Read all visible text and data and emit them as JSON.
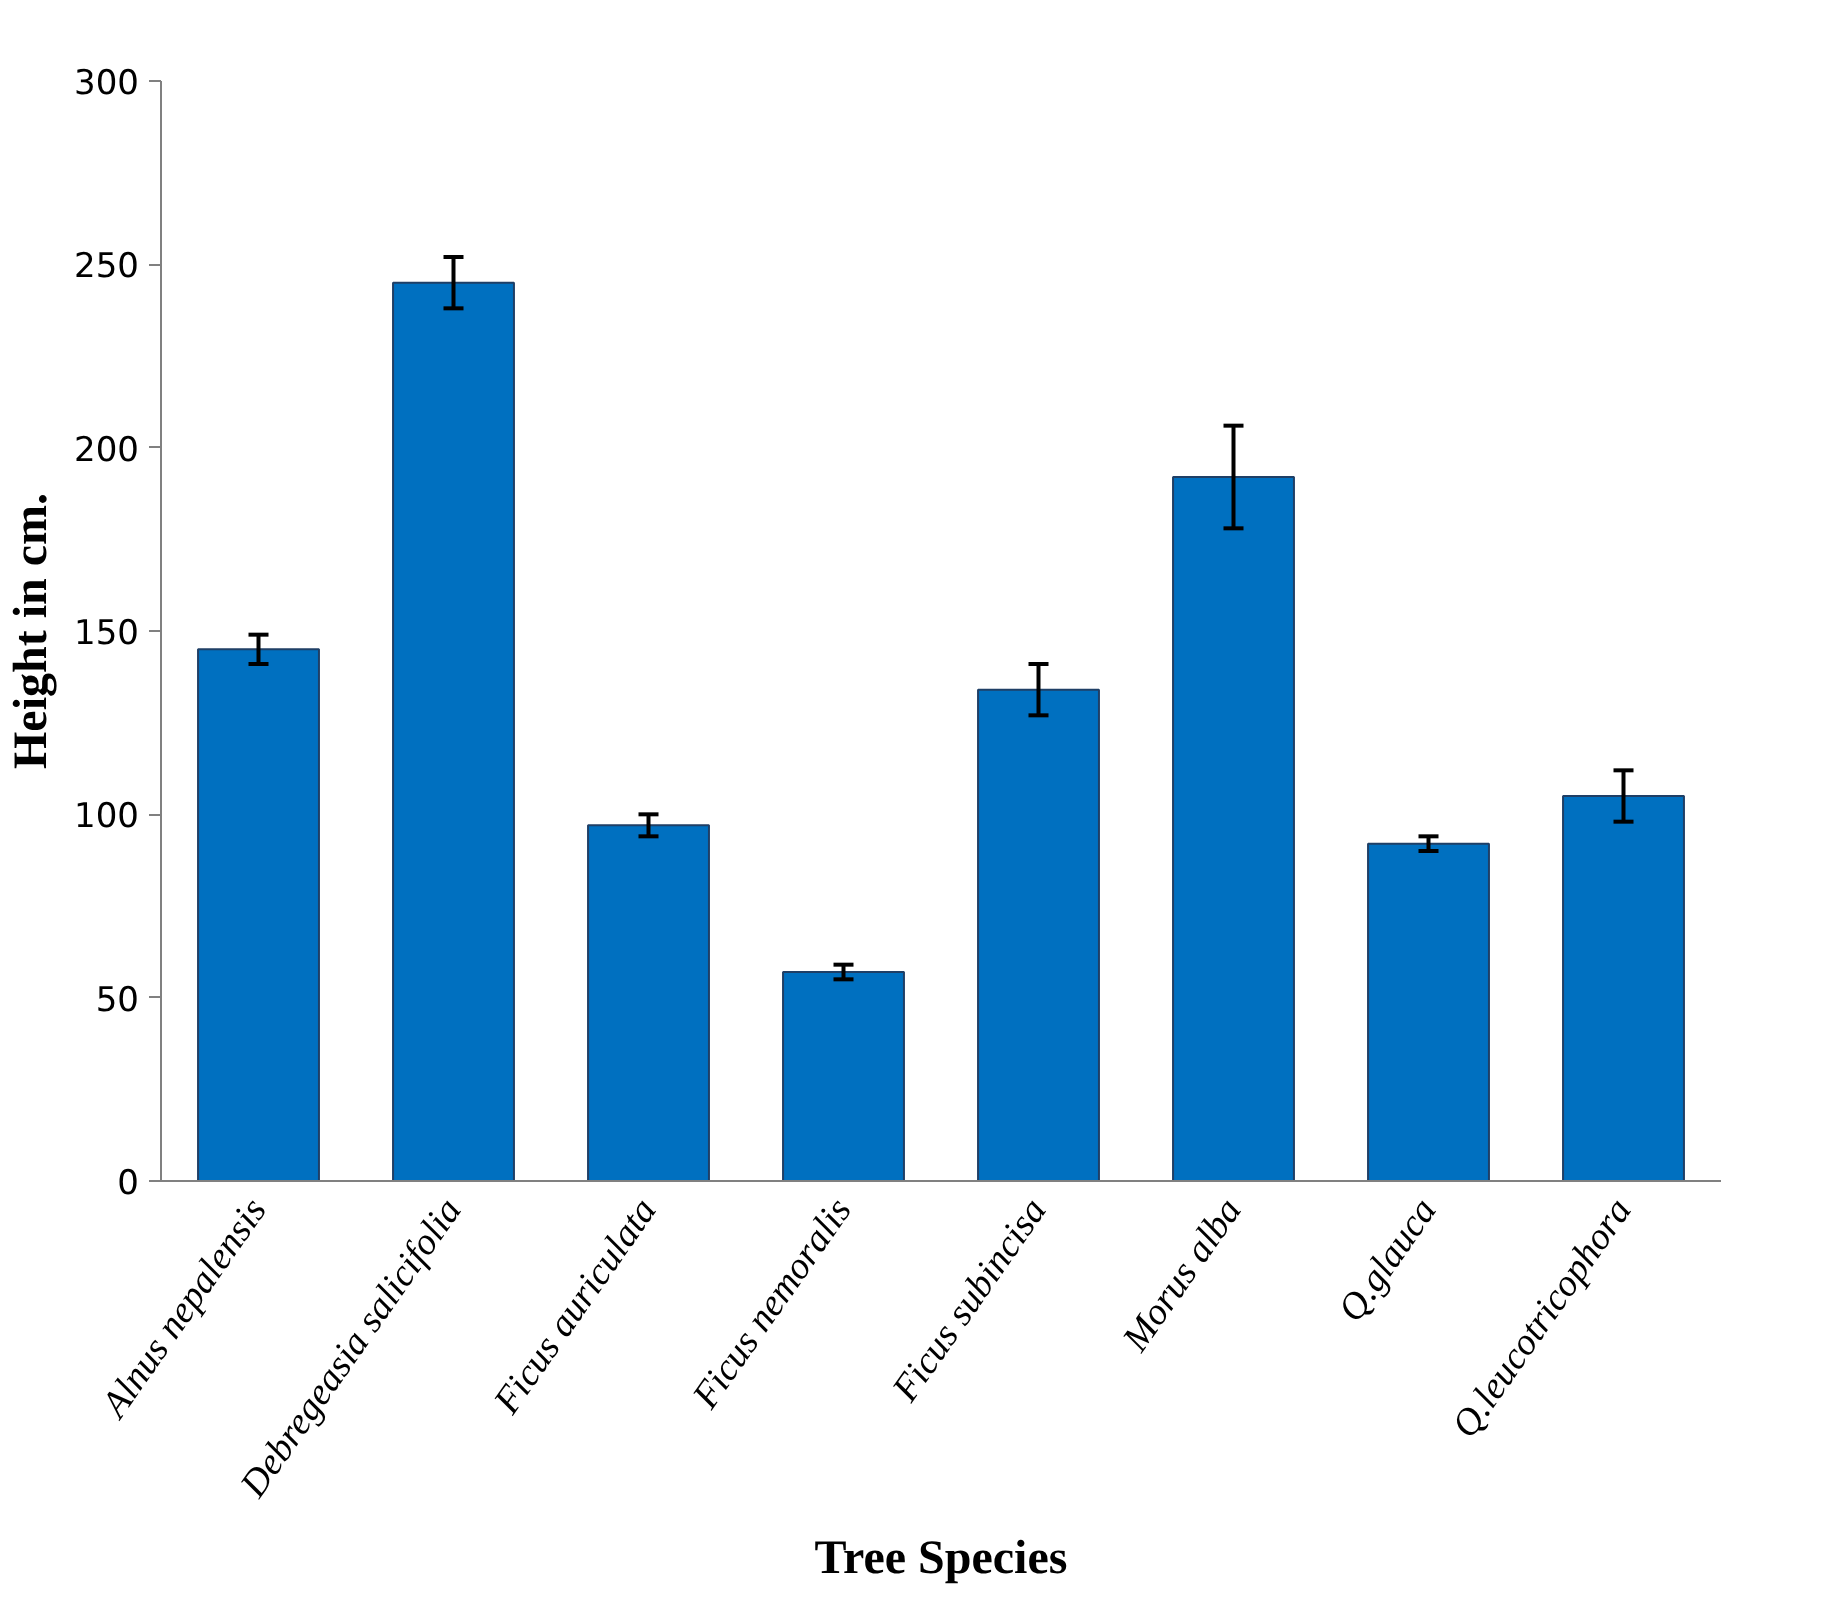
{
  "chart_data": {
    "type": "bar",
    "xlabel": "Tree Species",
    "ylabel": "Height in cm.",
    "categories": [
      "Alnus nepalensis",
      "Debregeasia salicifolia",
      "Ficus auriculata",
      "Ficus nemoralis",
      "Ficus subincisa",
      "Morus alba",
      "Q.glauca",
      "Q.leucotricophora"
    ],
    "values": [
      145,
      245,
      97,
      57,
      134,
      192,
      92,
      105
    ],
    "errors": [
      4,
      7,
      3,
      2,
      7,
      14,
      2,
      7
    ],
    "color": "#0070c0",
    "ylim": [
      0,
      300
    ],
    "yticks": [
      0,
      50,
      100,
      150,
      200,
      250,
      300
    ],
    "grid": false
  }
}
